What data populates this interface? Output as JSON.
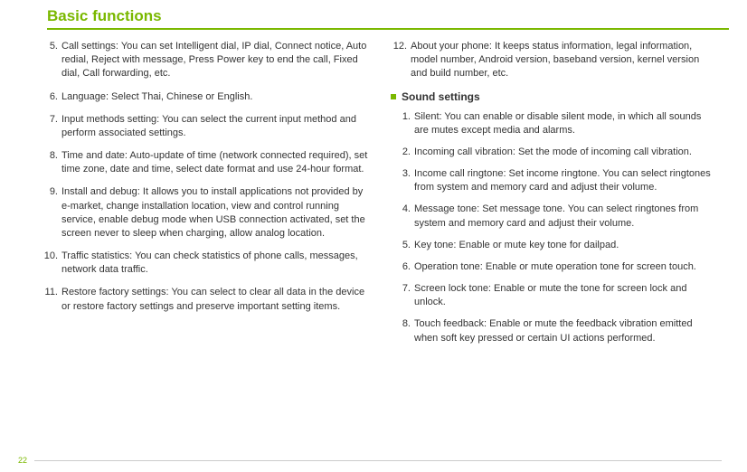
{
  "header": {
    "title": "Basic functions",
    "title_color": "#7ab800"
  },
  "page_number": "22",
  "left_items": [
    {
      "num": "5.",
      "text": "Call settings: You can set Intelligent dial, IP dial, Connect notice, Auto redial, Reject with message, Press Power key to end the call, Fixed dial, Call forwarding, etc."
    },
    {
      "num": "6.",
      "text": "Language: Select Thai, Chinese or English."
    },
    {
      "num": "7.",
      "text": "Input methods setting: You can select the current input method and perform associated settings."
    },
    {
      "num": "8.",
      "text": "Time and date: Auto-update of time (network connected required), set time zone, date and time, select date format and use 24-hour format."
    },
    {
      "num": "9.",
      "text": "Install and debug: It allows you to install applications not provided by e-market, change installation location, view and control running service, enable debug mode when USB connection activated, set the screen never to sleep when charging, allow analog location."
    },
    {
      "num": "10.",
      "text": "Traffic statistics: You can check statistics of phone calls, messages, network data traffic."
    },
    {
      "num": "11.",
      "text": "Restore factory settings: You can select to clear all data in the device or restore factory settings and preserve important setting items."
    }
  ],
  "right_top_items": [
    {
      "num": "12.",
      "text": "About your phone: It keeps status information, legal information, model number, Android version, baseband version, kernel version and build number, etc."
    }
  ],
  "sound_section": {
    "title": "Sound settings",
    "items": [
      {
        "num": "1.",
        "text": "Silent: You can enable or disable silent mode, in which all sounds are mutes except media and alarms."
      },
      {
        "num": "2.",
        "text": "Incoming call vibration: Set the mode of incoming call vibration."
      },
      {
        "num": "3.",
        "text": "Income call ringtone: Set income ringtone. You can select ringtones from system and memory card and adjust their volume."
      },
      {
        "num": "4.",
        "text": "Message tone: Set message tone. You can select ringtones from system and memory card and adjust their volume."
      },
      {
        "num": "5.",
        "text": "Key tone: Enable or mute key tone for dailpad."
      },
      {
        "num": "6.",
        "text": "Operation tone: Enable or mute operation tone for screen touch."
      },
      {
        "num": "7.",
        "text": "Screen lock tone: Enable or mute the tone for screen lock and unlock."
      },
      {
        "num": "8.",
        "text": "Touch feedback: Enable or mute the feedback vibration emitted when soft key pressed or certain UI actions performed."
      }
    ]
  }
}
